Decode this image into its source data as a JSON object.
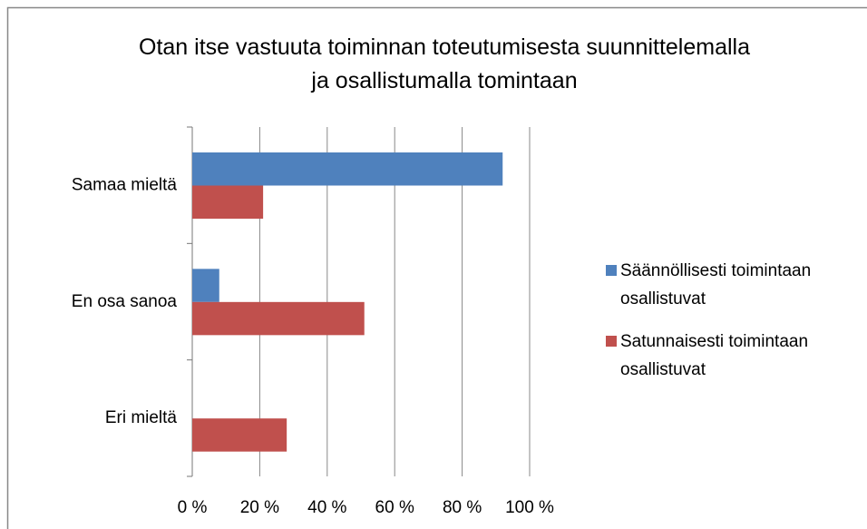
{
  "chart_data": {
    "type": "bar",
    "orientation": "horizontal",
    "title": "Otan itse vastuuta toiminnan toteutumisesta suunnittelemalla ja osallistumalla tomintaan",
    "categories": [
      "Samaa mieltä",
      "En osa sanoa",
      "Eri mieltä"
    ],
    "series": [
      {
        "name": "Säännöllisesti toimintaan osallistuvat",
        "color": "#4f81bd",
        "values": [
          92,
          8,
          0
        ]
      },
      {
        "name": "Satunnaisesti toimintaan osallistuvat",
        "color": "#c0504d",
        "values": [
          21,
          51,
          28
        ]
      }
    ],
    "xlim": [
      0,
      100
    ],
    "xticks": [
      {
        "value": 0,
        "label": "0 %"
      },
      {
        "value": 20,
        "label": "20 %"
      },
      {
        "value": 40,
        "label": "40 %"
      },
      {
        "value": 60,
        "label": "60 %"
      },
      {
        "value": 80,
        "label": "80 %"
      },
      {
        "value": 100,
        "label": "100 %"
      }
    ],
    "grid": true,
    "legend": "right"
  }
}
